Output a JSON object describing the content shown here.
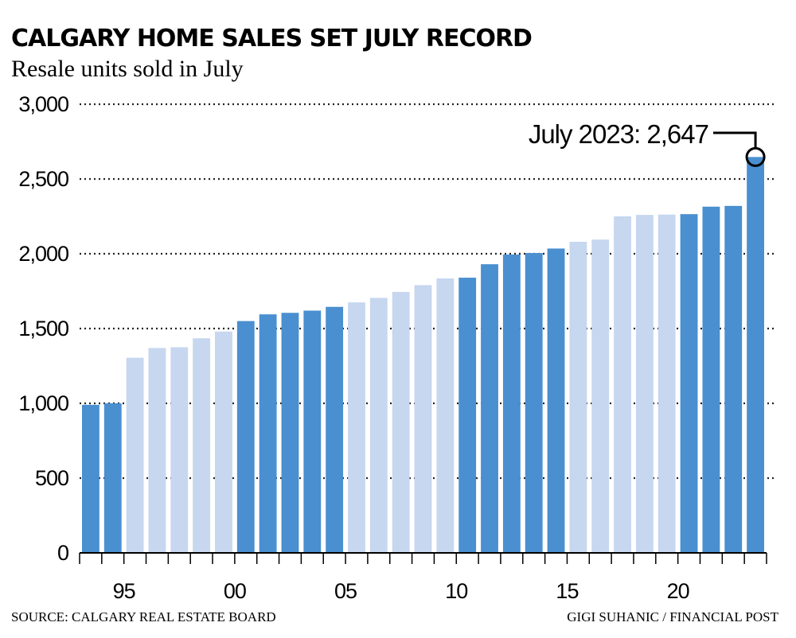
{
  "chart_data": {
    "type": "bar",
    "title": "CALGARY HOME SALES SET JULY RECORD",
    "subtitle": "Resale units sold in July",
    "source": "SOURCE: CALGARY REAL ESTATE BOARD",
    "credit": "GIGI SUHANIC / FINANCIAL POST",
    "annotation": "July 2023: 2,647",
    "categories": [
      null,
      null,
      "95",
      null,
      null,
      null,
      null,
      "00",
      null,
      null,
      null,
      null,
      "05",
      null,
      null,
      null,
      null,
      "10",
      null,
      null,
      null,
      null,
      "15",
      null,
      null,
      null,
      null,
      "20",
      null,
      null,
      null
    ],
    "values": [
      990,
      1000,
      1305,
      1370,
      1375,
      1435,
      1480,
      1550,
      1595,
      1605,
      1620,
      1645,
      1675,
      1705,
      1745,
      1790,
      1835,
      1840,
      1930,
      1995,
      2005,
      2035,
      2080,
      2095,
      2250,
      2260,
      2262,
      2265,
      2315,
      2320,
      2647
    ],
    "colors": [
      "#4a8fd0",
      "#4a8fd0",
      "#c6d7ef",
      "#c6d7ef",
      "#c6d7ef",
      "#c6d7ef",
      "#c6d7ef",
      "#4a8fd0",
      "#4a8fd0",
      "#4a8fd0",
      "#4a8fd0",
      "#4a8fd0",
      "#c6d7ef",
      "#c6d7ef",
      "#c6d7ef",
      "#c6d7ef",
      "#c6d7ef",
      "#4a8fd0",
      "#4a8fd0",
      "#4a8fd0",
      "#4a8fd0",
      "#4a8fd0",
      "#c6d7ef",
      "#c6d7ef",
      "#c6d7ef",
      "#c6d7ef",
      "#c6d7ef",
      "#4a8fd0",
      "#4a8fd0",
      "#4a8fd0",
      "#4a8fd0"
    ],
    "ylim": [
      0,
      3000
    ],
    "yticks": [
      0,
      500,
      {
        "value": 1000,
        "label": "1,000"
      },
      {
        "value": 1500,
        "label": "1,500"
      },
      {
        "value": 2000,
        "label": "2,000"
      },
      {
        "value": 2500,
        "label": "2,500"
      },
      {
        "value": 3000,
        "label": "3,000"
      }
    ],
    "grid": true
  }
}
